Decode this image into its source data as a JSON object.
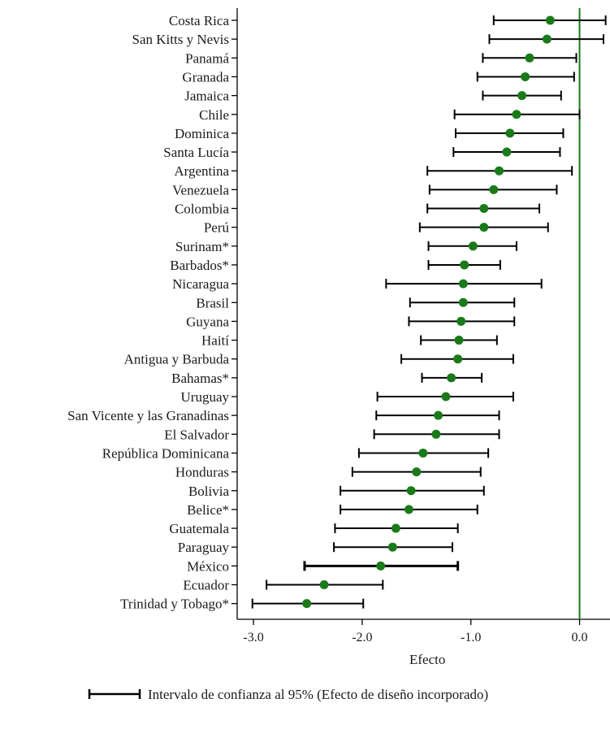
{
  "chart_data": {
    "type": "dot-interval",
    "xlabel": "Efecto",
    "xlim": [
      -3.15,
      0.28
    ],
    "xticks": [
      -3.0,
      -2.0,
      -1.0,
      0.0
    ],
    "xtick_labels": [
      "-3.0",
      "-2.0",
      "-1.0",
      "0.0"
    ],
    "reference_line_x": 0.0,
    "colors": {
      "point": "#1a7a1a",
      "reference_line": "#1a7a1a",
      "interval": "#000000"
    },
    "legend": {
      "label": "Intervalo de confianza al 95% (Efecto de diseño incorporado)",
      "placement": "bottom"
    },
    "categories": [
      "Costa Rica",
      "San Kitts y Nevis",
      "Panamá",
      "Granada",
      "Jamaica",
      "Chile",
      "Dominica",
      "Santa Lucía",
      "Argentina",
      "Venezuela",
      "Colombia",
      "Perú",
      "Surinam*",
      "Barbados*",
      "Nicaragua",
      "Brasil",
      "Guyana",
      "Haití",
      "Antigua y Barbuda",
      "Bahamas*",
      "Uruguay",
      "San Vicente y las Granadinas",
      "El Salvador",
      "República Dominicana",
      "Honduras",
      "Bolivia",
      "Belice*",
      "Guatemala",
      "Paraguay",
      "México",
      "Ecuador",
      "Trinidad y Tobago*"
    ],
    "estimate": [
      -0.27,
      -0.3,
      -0.46,
      -0.5,
      -0.53,
      -0.58,
      -0.64,
      -0.67,
      -0.74,
      -0.79,
      -0.88,
      -0.88,
      -0.98,
      -1.06,
      -1.07,
      -1.07,
      -1.09,
      -1.11,
      -1.12,
      -1.18,
      -1.23,
      -1.3,
      -1.32,
      -1.44,
      -1.5,
      -1.55,
      -1.57,
      -1.69,
      -1.72,
      -1.83,
      -2.35,
      -2.51
    ],
    "lower": [
      -0.79,
      -0.83,
      -0.89,
      -0.94,
      -0.89,
      -1.15,
      -1.14,
      -1.16,
      -1.4,
      -1.38,
      -1.4,
      -1.47,
      -1.39,
      -1.39,
      -1.78,
      -1.56,
      -1.57,
      -1.46,
      -1.64,
      -1.45,
      -1.86,
      -1.87,
      -1.89,
      -2.03,
      -2.09,
      -2.2,
      -2.2,
      -2.25,
      -2.26,
      -2.53,
      -2.88,
      -3.01
    ],
    "upper": [
      0.24,
      0.22,
      -0.03,
      -0.05,
      -0.17,
      0.0,
      -0.15,
      -0.18,
      -0.07,
      -0.21,
      -0.37,
      -0.29,
      -0.58,
      -0.73,
      -0.35,
      -0.6,
      -0.6,
      -0.76,
      -0.61,
      -0.9,
      -0.61,
      -0.74,
      -0.74,
      -0.84,
      -0.91,
      -0.88,
      -0.94,
      -1.12,
      -1.17,
      -1.12,
      -1.81,
      -1.99
    ]
  }
}
